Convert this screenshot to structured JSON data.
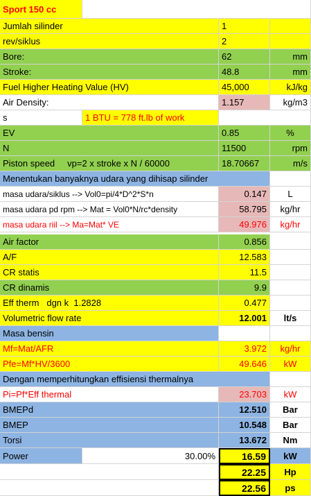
{
  "title": "Sport 150 cc",
  "rows": {
    "jumlah_silinder": {
      "label": "Jumlah silinder",
      "value": "1"
    },
    "rev_siklus": {
      "label": "rev/siklus",
      "value": "2"
    },
    "bore": {
      "label": "Bore:",
      "value": "62",
      "unit": "mm"
    },
    "stroke": {
      "label": "Stroke:",
      "value": "48.8",
      "unit": "mm"
    },
    "hv": {
      "label": "Fuel Higher Heating Value (HV)",
      "value": "45,000",
      "unit": "kJ/kg"
    },
    "air_density": {
      "label": "Air Density:",
      "value": "1.157",
      "unit": "kg/m3"
    },
    "btu_note": {
      "left": "s",
      "text": "1 BTU = 778 ft.lb of work"
    },
    "ev": {
      "label": "EV",
      "value": "0.85",
      "unit": "%"
    },
    "n": {
      "label": "N",
      "value": "11500",
      "unit": "rpm"
    },
    "piston_speed": {
      "label": "Piston speed",
      "formula": "vp=2 x stroke x N / 60000",
      "value": "18.70667",
      "unit": "m/s"
    },
    "menentukan": {
      "label": "Menentukan banyaknya udara yang dihisap silinder"
    },
    "masa_udara_siklus": {
      "label": "masa udara/siklus --> Vol0=pi/4*D^2*S*n",
      "value": "0.147",
      "unit": "L"
    },
    "masa_udara_rpm": {
      "label": "masa udara pd rpm --> Mat = Vol0*N/rc*density",
      "value": "58.795",
      "unit": "kg/hr"
    },
    "masa_udara_riil": {
      "label": "masa udara riil --> Ma=Mat* VE",
      "value": "49.976",
      "unit": "kg/hr"
    },
    "air_factor": {
      "label": "Air factor",
      "value": "0.856"
    },
    "af": {
      "label": "A/F",
      "value": "12.583"
    },
    "cr_statis": {
      "label": "CR statis",
      "value": "11.5"
    },
    "cr_dinamis": {
      "label": "CR dinamis",
      "value": "9.9"
    },
    "eff_therm": {
      "label": "Eff therm   dgn k  1.2828",
      "value": "0.477"
    },
    "volumetric": {
      "label": "Volumetric flow rate",
      "value": "12.001",
      "unit": "lt/s"
    },
    "masa_bensin": {
      "label": "Masa bensin"
    },
    "mf": {
      "label": "Mf=Mat/AFR",
      "value": "3.972",
      "unit": "kg/hr"
    },
    "pfe": {
      "label": "Pfe=Mf*HV/3600",
      "value": "49.646",
      "unit": "kW"
    },
    "dengan": {
      "label": "Dengan memperhitungkan effisiensi thermalnya"
    },
    "pi": {
      "label": "Pi=Pf*Eff thermal",
      "value": "23.703",
      "unit": "kW"
    },
    "bmepd": {
      "label": "BMEPd",
      "value": "12.510",
      "unit": "Bar"
    },
    "bmep": {
      "label": "BMEP",
      "value": "10.548",
      "unit": "Bar"
    },
    "torsi": {
      "label": "Torsi",
      "value": "13.672",
      "unit": "Nm"
    },
    "power": {
      "label": "Power",
      "pct": "30.00%",
      "value": "16.59",
      "unit": "kW"
    },
    "hp": {
      "value": "22.25",
      "unit": "Hp"
    },
    "ps": {
      "value": "22.56",
      "unit": "ps"
    }
  }
}
